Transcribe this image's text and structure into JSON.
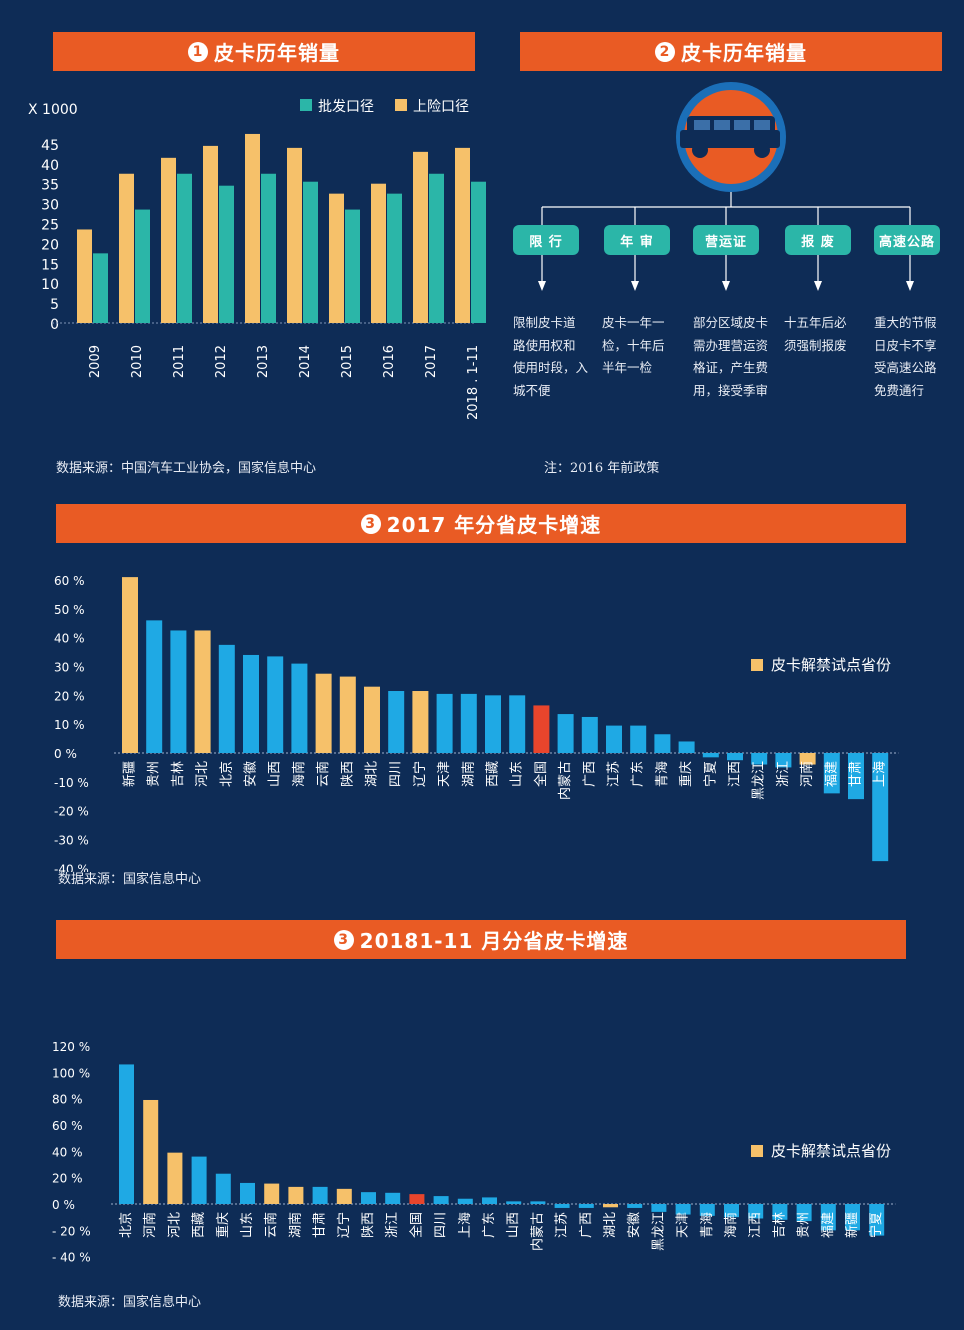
{
  "sections": {
    "chart1": {
      "number": "1",
      "title": "皮卡历年销量"
    },
    "policy": {
      "number": "2",
      "title": "皮卡历年销量"
    },
    "chart3": {
      "number": "3",
      "title": "2017 年分省皮卡增速"
    },
    "chart4": {
      "number": "3",
      "title": "20181-11 月分省皮卡增速"
    }
  },
  "sources": {
    "chart1": "数据来源：中国汽车工业协会，国家信息中心",
    "policy_note": "注：2016 年前政策",
    "chart3": "数据来源：国家信息中心",
    "chart4": "数据来源：国家信息中心"
  },
  "policy": {
    "items": [
      {
        "label": "限 行",
        "desc": [
          "限制皮卡道",
          "路使用权和",
          "使用时段，入",
          "城不便"
        ]
      },
      {
        "label": "年 审",
        "desc": [
          "皮卡一年一",
          "检，十年后",
          "半年一检"
        ]
      },
      {
        "label": "营运证",
        "desc": [
          "部分区域皮卡",
          "需办理营运资",
          "格证，产生费",
          "用，接受季审"
        ]
      },
      {
        "label": "报 废",
        "desc": [
          "十五年后必",
          "须强制报废"
        ]
      },
      {
        "label": "高速公路",
        "desc": [
          "重大的节假",
          "日皮卡不享",
          "受高速公路",
          "免费通行"
        ]
      }
    ],
    "icon": "pickup-truck-icon"
  },
  "colors": {
    "background": "#0e2c56",
    "banner": "#e95b24",
    "teal": "#2bb6a8",
    "yellow": "#f6c16a",
    "blue": "#1fa9e4",
    "red": "#e8452c"
  },
  "chart_data": [
    {
      "type": "bar",
      "ylabel": "X 1000",
      "categories": [
        "2009",
        "2010",
        "2011",
        "2012",
        "2013",
        "2014",
        "2015",
        "2016",
        "2017",
        "2018 . 1-11"
      ],
      "series": [
        {
          "name": "批发口径",
          "color": "#2bb6a8",
          "values": [
            17.5,
            28.5,
            37.5,
            34.5,
            37.5,
            35.5,
            28.5,
            32.5,
            37.5,
            35.5
          ]
        },
        {
          "name": "上险口径",
          "color": "#f6c16a",
          "values": [
            23.5,
            37.5,
            41.5,
            44.5,
            47.5,
            44,
            32.5,
            35,
            43,
            44
          ]
        }
      ],
      "ylim": [
        0,
        45
      ],
      "yticks": [
        "0",
        "5",
        "10",
        "15",
        "20",
        "25",
        "30",
        "35",
        "40",
        "45"
      ],
      "legend": "top-right"
    },
    {
      "type": "bar",
      "legend_label": "皮卡解禁试点省份",
      "categories": [
        "新疆",
        "贵州",
        "吉林",
        "河北",
        "北京",
        "安徽",
        "山西",
        "海南",
        "云南",
        "陕西",
        "湖北",
        "四川",
        "辽宁",
        "天津",
        "湖南",
        "西藏",
        "山东",
        "全国",
        "内蒙古",
        "广西",
        "江苏",
        "广东",
        "青海",
        "重庆",
        "宁夏",
        "江西",
        "黑龙江",
        "浙江",
        "河南",
        "福建",
        "甘肃",
        "上海"
      ],
      "values": [
        61,
        46,
        42.5,
        42.5,
        37.5,
        34,
        33.5,
        31,
        27.5,
        26.5,
        23,
        21.5,
        21.5,
        20.5,
        20.5,
        20,
        20,
        16.5,
        13.5,
        12.5,
        9.5,
        9.5,
        6.5,
        4,
        -1.5,
        -2.5,
        -4,
        -5,
        -4,
        -14,
        -16,
        -37.5
      ],
      "kinds": [
        "pilot",
        "normal",
        "normal",
        "pilot",
        "normal",
        "normal",
        "normal",
        "normal",
        "pilot",
        "pilot",
        "pilot",
        "normal",
        "pilot",
        "normal",
        "normal",
        "normal",
        "normal",
        "national",
        "normal",
        "normal",
        "normal",
        "normal",
        "normal",
        "normal",
        "normal",
        "normal",
        "normal",
        "normal",
        "pilot",
        "normal",
        "normal",
        "normal"
      ],
      "ylim": [
        -40,
        60
      ],
      "yticks": [
        "60 %",
        "50 %",
        "40 %",
        "30 %",
        "20 %",
        "10 %",
        "0 %",
        "-10 %",
        "-20 %",
        "-30 %",
        "-40 %"
      ],
      "legend": "right"
    },
    {
      "type": "bar",
      "legend_label": "皮卡解禁试点省份",
      "categories": [
        "北京",
        "河南",
        "河北",
        "西藏",
        "重庆",
        "山东",
        "云南",
        "湖南",
        "甘肃",
        "辽宁",
        "陕西",
        "浙江",
        "全国",
        "四川",
        "上海",
        "广东",
        "山西",
        "内蒙古",
        "江苏",
        "广西",
        "湖北",
        "安徽",
        "黑龙江",
        "天津",
        "青海",
        "海南",
        "江西",
        "吉林",
        "贵州",
        "福建",
        "新疆",
        "宁夏"
      ],
      "values": [
        106,
        79,
        39,
        36,
        23,
        16,
        15.5,
        13,
        13,
        11.5,
        9,
        8.5,
        7.5,
        6,
        4,
        5,
        2,
        2,
        -3,
        -3,
        -2.5,
        -3,
        -6,
        -8,
        -9,
        -10,
        -11,
        -12,
        -13,
        -20,
        -20,
        -24
      ],
      "kinds": [
        "normal",
        "pilot",
        "pilot",
        "normal",
        "normal",
        "normal",
        "pilot",
        "pilot",
        "normal",
        "pilot",
        "normal",
        "normal",
        "national",
        "normal",
        "normal",
        "normal",
        "normal",
        "normal",
        "normal",
        "normal",
        "pilot",
        "normal",
        "normal",
        "normal",
        "normal",
        "normal",
        "normal",
        "normal",
        "normal",
        "normal",
        "normal",
        "normal"
      ],
      "ylim": [
        -40,
        120
      ],
      "yticks": [
        "120 %",
        "100 %",
        "80 %",
        "60 %",
        "40 %",
        "20 %",
        "0 %",
        "- 20 %",
        "- 40 %"
      ],
      "legend": "right"
    }
  ]
}
